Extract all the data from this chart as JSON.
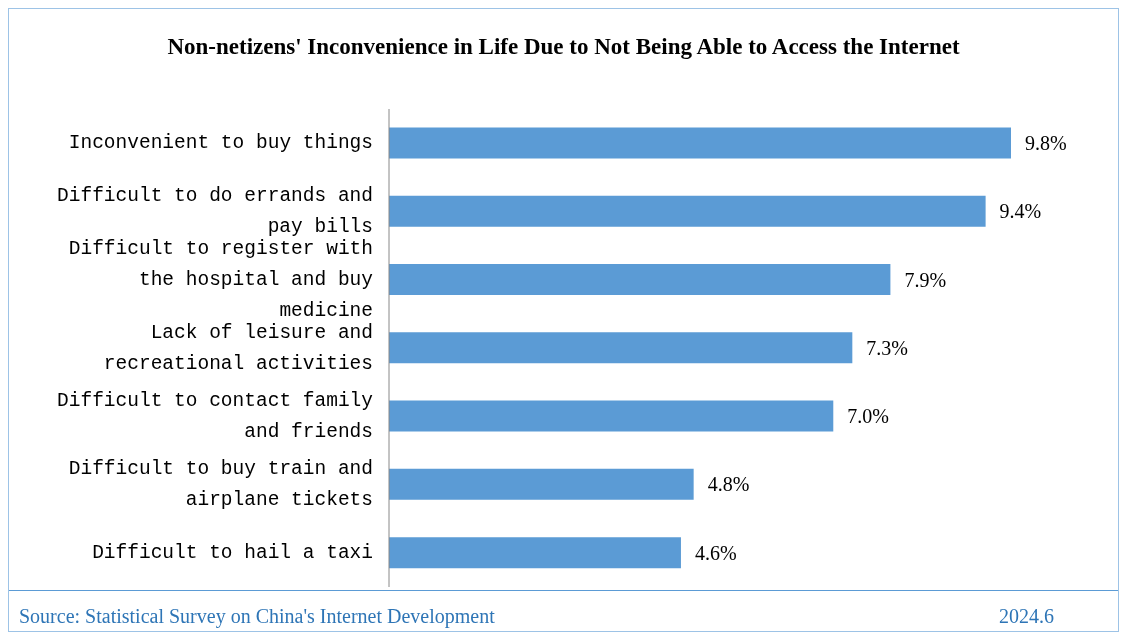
{
  "chart_data": {
    "type": "bar",
    "orientation": "horizontal",
    "title": "Non-netizens' Inconvenience in Life Due to Not Being Able to Access the Internet",
    "categories": [
      "Inconvenient to buy things",
      "Difficult to do errands and pay bills",
      "Difficult to register with the hospital and buy medicine",
      "Lack of leisure and recreational activities",
      "Difficult to contact family and friends",
      "Difficult to buy train and airplane tickets",
      "Difficult to hail a taxi"
    ],
    "values": [
      9.8,
      9.4,
      7.9,
      7.3,
      7.0,
      4.8,
      4.6
    ],
    "value_labels": [
      "9.8%",
      "9.4%",
      "7.9%",
      "7.3%",
      "7.0%",
      "4.8%",
      "4.6%"
    ],
    "color": "#5b9bd5",
    "tick_labels": "y",
    "grid": false,
    "legend": false,
    "annotations": [
      "Source: Statistical Survey on China's Internet Development",
      "2024.6"
    ]
  }
}
